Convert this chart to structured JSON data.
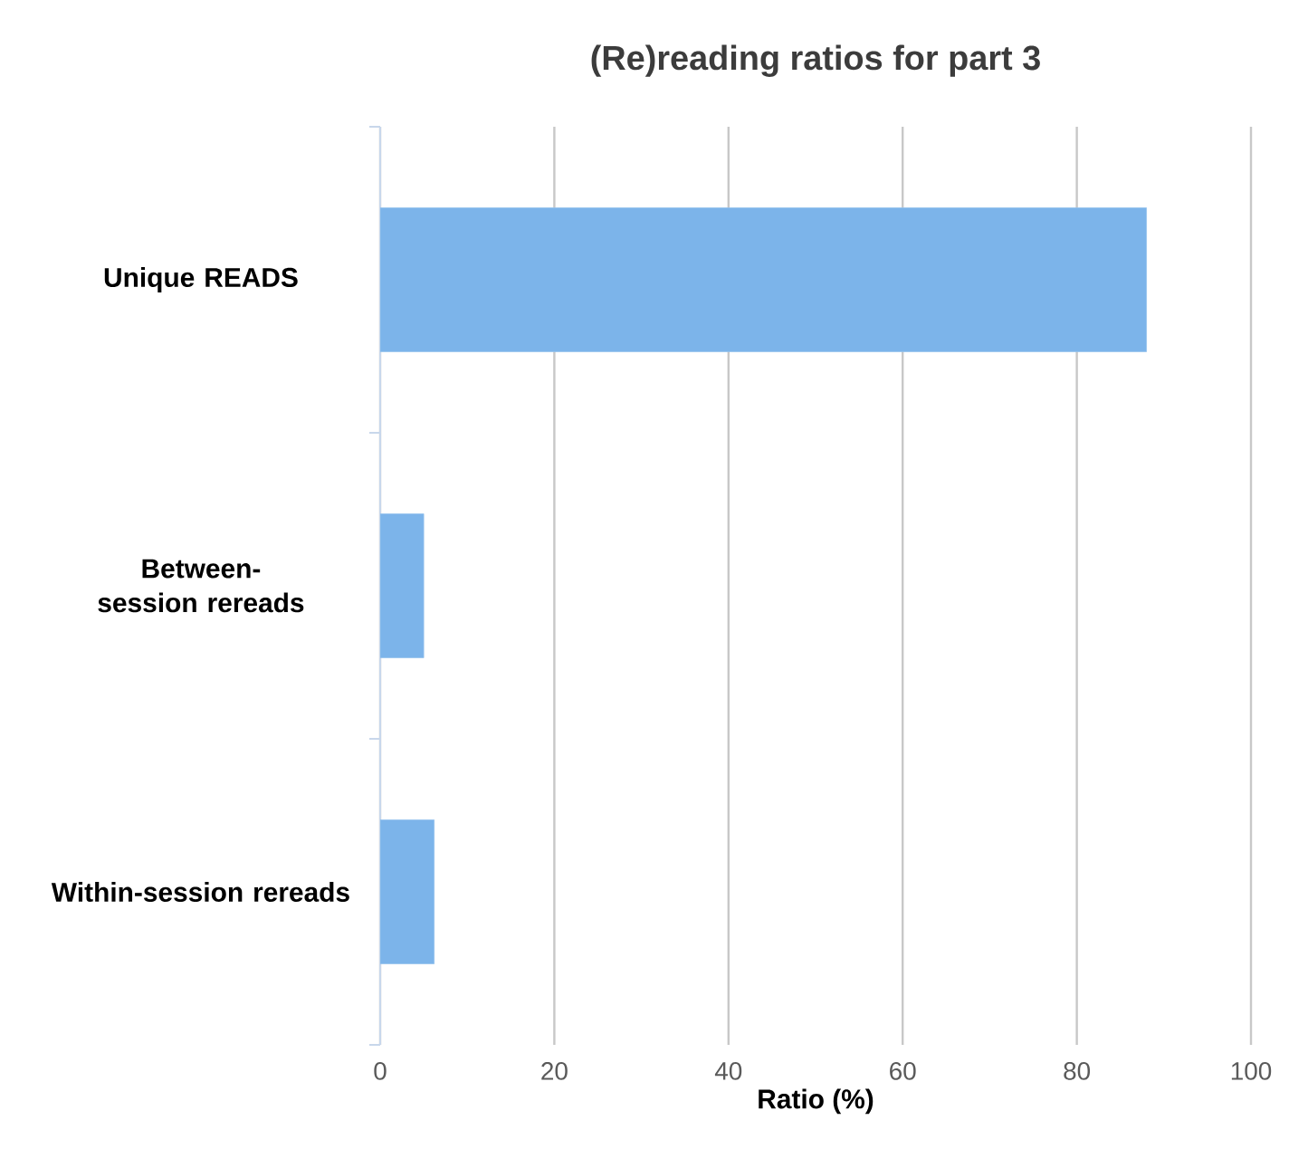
{
  "chart_data": {
    "type": "bar",
    "orientation": "horizontal",
    "title": "(Re)reading ratios for part 3",
    "xlabel": "Ratio (%)",
    "categories": [
      "Unique READS",
      "Between-session rereads",
      "Within-session rereads"
    ],
    "values": [
      88,
      5,
      6.2
    ],
    "color": "#7cb4ea",
    "xlim": [
      0,
      100
    ],
    "xticks": [
      0,
      20,
      40,
      60,
      80,
      100
    ],
    "grid": "x"
  }
}
